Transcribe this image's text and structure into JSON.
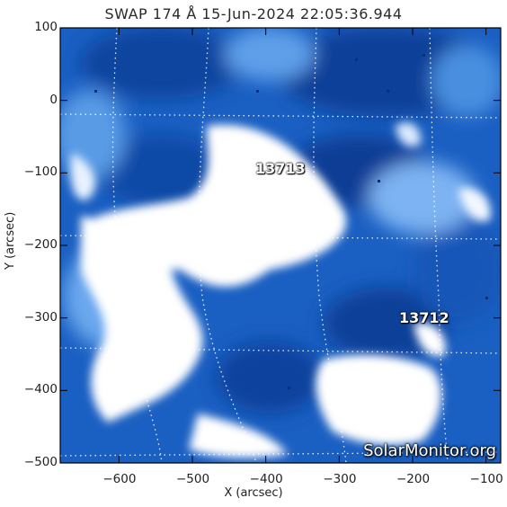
{
  "title": "SWAP 174 Å 15-Jun-2024 22:05:36.944",
  "watermark": "SolarMonitor.org",
  "colors": {
    "deep": "#0a3f9a",
    "mid": "#1a63c6",
    "light": "#5c9fe8",
    "bright": "#ffffff",
    "frame": "#000000"
  },
  "chart_data": {
    "type": "heatmap",
    "title": "SWAP 174 Å 15-Jun-2024 22:05:36.944",
    "xlabel": "X (arcsec)",
    "ylabel": "Y (arcsec)",
    "xlim": [
      -680,
      -80
    ],
    "ylim": [
      -500,
      100
    ],
    "xticks": [
      "-600",
      "-500",
      "-400",
      "-300",
      "-200",
      "-100"
    ],
    "yticks": [
      "100",
      "0",
      "-100",
      "-200",
      "-300",
      "-400",
      "-500"
    ],
    "regions": [
      {
        "label": "13713",
        "x": -385,
        "y": -90
      },
      {
        "label": "13712",
        "x": -175,
        "y": -295
      }
    ]
  }
}
